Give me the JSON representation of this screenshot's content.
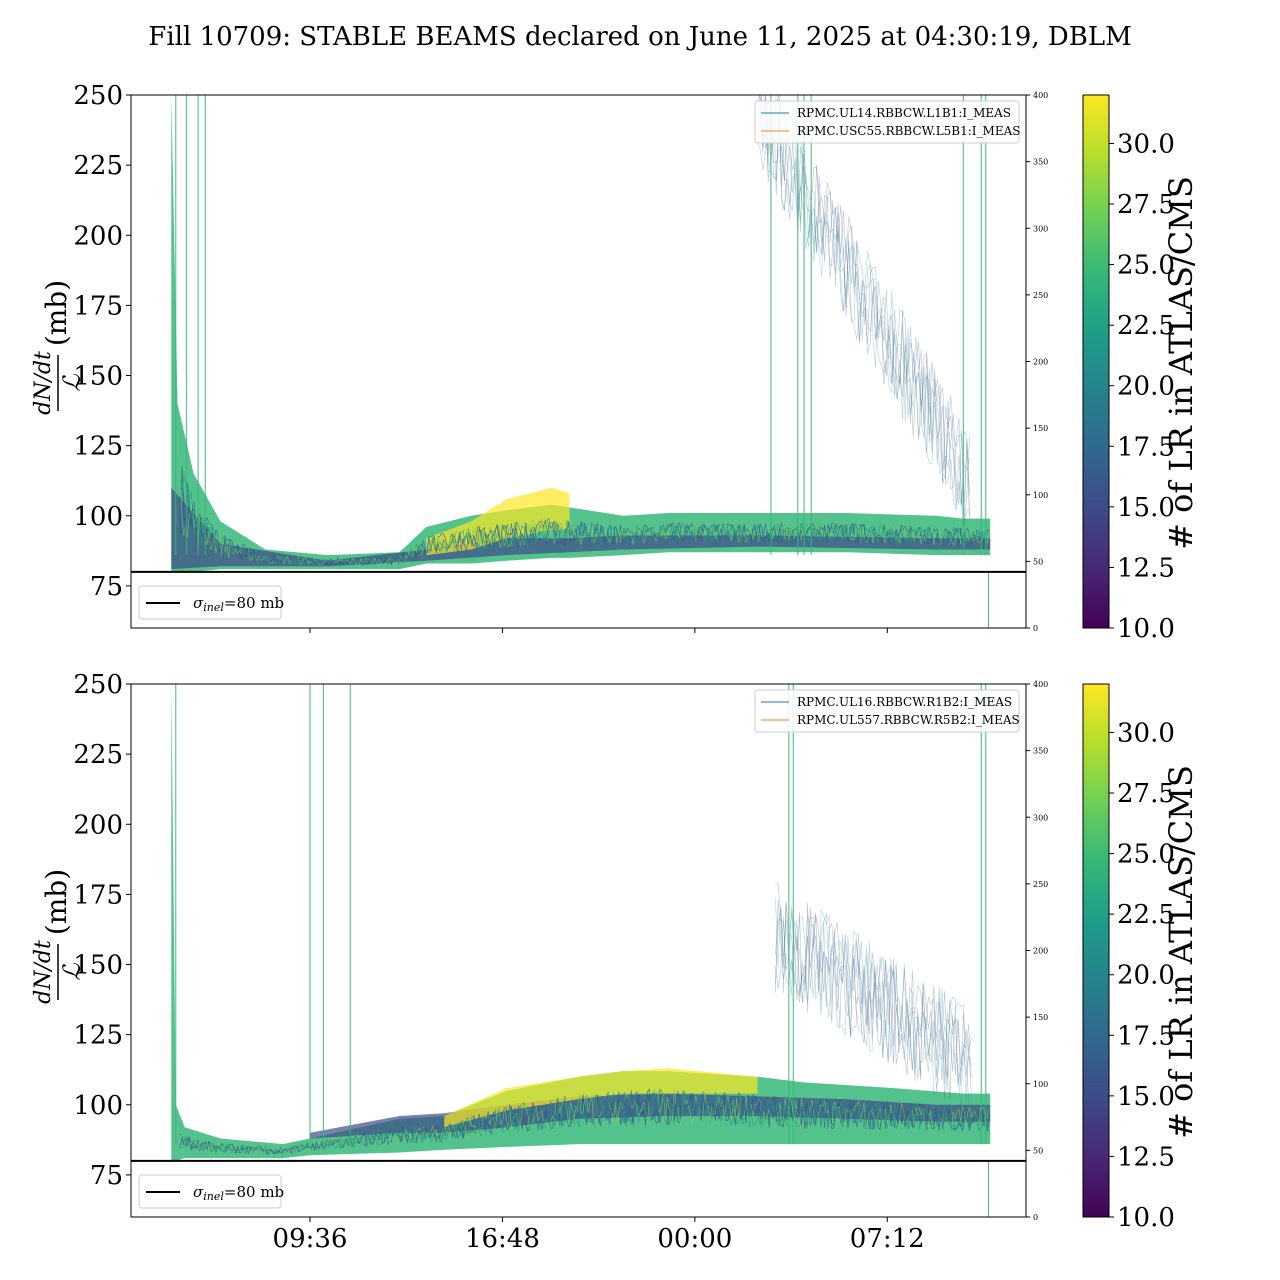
{
  "title": "Fill 10709: STABLE BEAMS declared on June 11, 2025 at 04:30:19, DBLM",
  "colors": {
    "viridis": [
      "#440154",
      "#482878",
      "#3e4a89",
      "#31688e",
      "#26828e",
      "#1f9e89",
      "#35b779",
      "#6ece58",
      "#b5de2b",
      "#fde725"
    ],
    "legend_blue": "#1f77b4",
    "legend_orange": "#ff7f0e",
    "sigma_line": "#000000"
  },
  "chart_data": [
    {
      "type": "line",
      "panel": "top",
      "ylabel": "dN/dt / ℒ (mb)",
      "ylabel_parts": {
        "num": "dN/dt",
        "den": "ℒ",
        "unit": "(mb)"
      },
      "ylim": [
        60,
        250
      ],
      "yticks": [
        75,
        100,
        125,
        150,
        175,
        200,
        225,
        250
      ],
      "y2lim": [
        0,
        400
      ],
      "y2ticks": [
        0,
        50,
        100,
        150,
        200,
        250,
        300,
        350,
        400
      ],
      "xticks": [],
      "x_tick_positions": [
        0.2,
        0.415,
        0.63,
        0.845
      ],
      "hline": {
        "y": 80,
        "label_sym": "σ",
        "label_sub": "inel",
        "label_rest": "=80 mb"
      },
      "series": [
        {
          "name": "RPMC.UL14.RBBCW.L1B1:I_MEAS",
          "color": "#1f77b4"
        },
        {
          "name": "RPMC.USC55.RBBCW.L5B1:I_MEAS",
          "color": "#ff7f0e"
        }
      ],
      "bands": [
        {
          "x": [
            0.045,
            0.052,
            0.07,
            0.1,
            0.15,
            0.22,
            0.3,
            0.33,
            0.38,
            0.42,
            0.47,
            0.49,
            0.55,
            0.6,
            0.7,
            0.8,
            0.9,
            0.93,
            0.96
          ],
          "lo": [
            80,
            80,
            80,
            81,
            81,
            81,
            81,
            83,
            83,
            84,
            85,
            85,
            86,
            87,
            87,
            87,
            86,
            86,
            86
          ],
          "hi": [
            250,
            140,
            115,
            98,
            88,
            86,
            87,
            96,
            100,
            102,
            104,
            103,
            100,
            101,
            101,
            101,
            100,
            99,
            99
          ],
          "level": 24
        },
        {
          "x": [
            0.045,
            0.1,
            0.22,
            0.33,
            0.42,
            0.49,
            0.55,
            0.7,
            0.9,
            0.96
          ],
          "lo": [
            81,
            82,
            82,
            84,
            86,
            87,
            88,
            89,
            88,
            88
          ],
          "hi": [
            110,
            90,
            84,
            88,
            92,
            92,
            93,
            93,
            92,
            92
          ],
          "level": 16
        },
        {
          "x": [
            0.33,
            0.38,
            0.42,
            0.47,
            0.49
          ],
          "lo": [
            86,
            88,
            92,
            95,
            95
          ],
          "hi": [
            92,
            98,
            106,
            110,
            108
          ],
          "level": 31
        }
      ],
      "scatter_band": {
        "x0": 0.7,
        "x1": 0.94,
        "y_start": 245,
        "y_end": 110,
        "level": 20
      },
      "spikes": [
        0.05,
        0.062,
        0.075,
        0.083,
        0.715,
        0.745,
        0.752,
        0.76,
        0.93,
        0.95,
        0.955
      ]
    },
    {
      "type": "line",
      "panel": "bottom",
      "ylabel": "dN/dt / ℒ (mb)",
      "ylabel_parts": {
        "num": "dN/dt",
        "den": "ℒ",
        "unit": "(mb)"
      },
      "ylim": [
        60,
        250
      ],
      "yticks": [
        75,
        100,
        125,
        150,
        175,
        200,
        225,
        250
      ],
      "y2lim": [
        0,
        400
      ],
      "y2ticks": [
        0,
        50,
        100,
        150,
        200,
        250,
        300,
        350,
        400
      ],
      "xticks": [
        "09:36",
        "16:48",
        "00:00",
        "07:12"
      ],
      "x_tick_positions": [
        0.2,
        0.415,
        0.63,
        0.845
      ],
      "hline": {
        "y": 80,
        "label_sym": "σ",
        "label_sub": "inel",
        "label_rest": "=80 mb"
      },
      "series": [
        {
          "name": "RPMC.UL16.RBBCW.R1B2:I_MEAS",
          "color": "#1f77b4"
        },
        {
          "name": "RPMC.UL557.RBBCW.R5B2:I_MEAS",
          "color": "#ff7f0e"
        }
      ],
      "bands": [
        {
          "x": [
            0.045,
            0.05,
            0.06,
            0.1,
            0.17,
            0.2,
            0.3,
            0.35,
            0.42,
            0.5,
            0.55,
            0.6,
            0.7,
            0.75,
            0.85,
            0.93,
            0.96
          ],
          "lo": [
            80,
            80,
            81,
            81,
            81,
            82,
            83,
            84,
            85,
            86,
            86,
            86,
            86,
            86,
            86,
            86,
            86
          ],
          "hi": [
            250,
            100,
            92,
            88,
            86,
            88,
            95,
            96,
            105,
            110,
            112,
            112,
            110,
            108,
            106,
            104,
            104
          ],
          "level": 24
        },
        {
          "x": [
            0.2,
            0.3,
            0.35,
            0.42,
            0.5,
            0.6,
            0.7,
            0.8,
            0.9,
            0.96
          ],
          "lo": [
            88,
            90,
            90,
            92,
            95,
            96,
            96,
            95,
            94,
            94
          ],
          "hi": [
            90,
            96,
            97,
            100,
            103,
            104,
            103,
            102,
            100,
            100
          ],
          "level": 16
        },
        {
          "x": [
            0.35,
            0.42,
            0.5,
            0.55,
            0.6,
            0.7
          ],
          "lo": [
            92,
            98,
            102,
            104,
            104,
            104
          ],
          "hi": [
            96,
            106,
            110,
            112,
            113,
            110
          ],
          "level": 31
        }
      ],
      "scatter_band": {
        "x0": 0.72,
        "x1": 0.94,
        "y_start": 160,
        "y_end": 115,
        "level": 20
      },
      "spikes": [
        0.05,
        0.2,
        0.215,
        0.245,
        0.735,
        0.74,
        0.95,
        0.955
      ]
    }
  ],
  "colorbar": {
    "label": "# of LR in ATLAS/CMS",
    "range": [
      10,
      32
    ],
    "ticks": [
      "10.0",
      "12.5",
      "15.0",
      "17.5",
      "20.0",
      "22.5",
      "25.0",
      "27.5",
      "30.0"
    ]
  }
}
